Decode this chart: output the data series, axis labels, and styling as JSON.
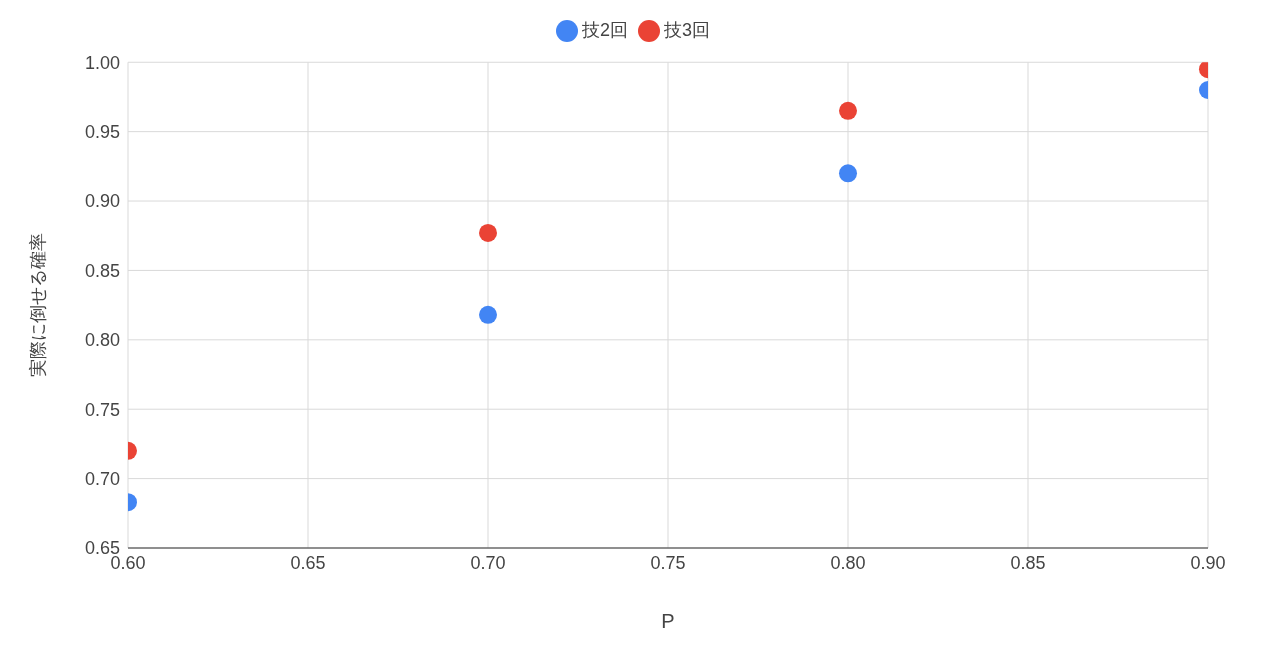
{
  "chart_data": {
    "type": "scatter",
    "xlabel": "P",
    "ylabel": "実際に倒せる確率",
    "x": [
      0.6,
      0.7,
      0.8,
      0.9
    ],
    "series": [
      {
        "name": "技2回",
        "color": "#4285f4",
        "values": [
          0.683,
          0.818,
          0.92,
          0.98
        ]
      },
      {
        "name": "技3回",
        "color": "#ea4335",
        "values": [
          0.72,
          0.877,
          0.965,
          0.995
        ]
      }
    ],
    "xlim": [
      0.6,
      0.9
    ],
    "xticks": [
      {
        "value": 0.6,
        "label": "0.60"
      },
      0.65,
      {
        "value": 0.7,
        "label": "0.70"
      },
      0.75,
      {
        "value": 0.8,
        "label": "0.80"
      },
      0.85,
      {
        "value": 0.9,
        "label": "0.90"
      }
    ],
    "ylim": [
      0.65,
      1.0
    ],
    "yticks": [
      0.65,
      {
        "value": 0.7,
        "label": "0.70"
      },
      0.75,
      {
        "value": 0.8,
        "label": "0.80"
      },
      0.85,
      {
        "value": 0.9,
        "label": "0.90"
      },
      0.95,
      {
        "value": 1.0,
        "label": "1.00"
      }
    ],
    "grid": true,
    "legend": "top",
    "marker": "circle"
  }
}
